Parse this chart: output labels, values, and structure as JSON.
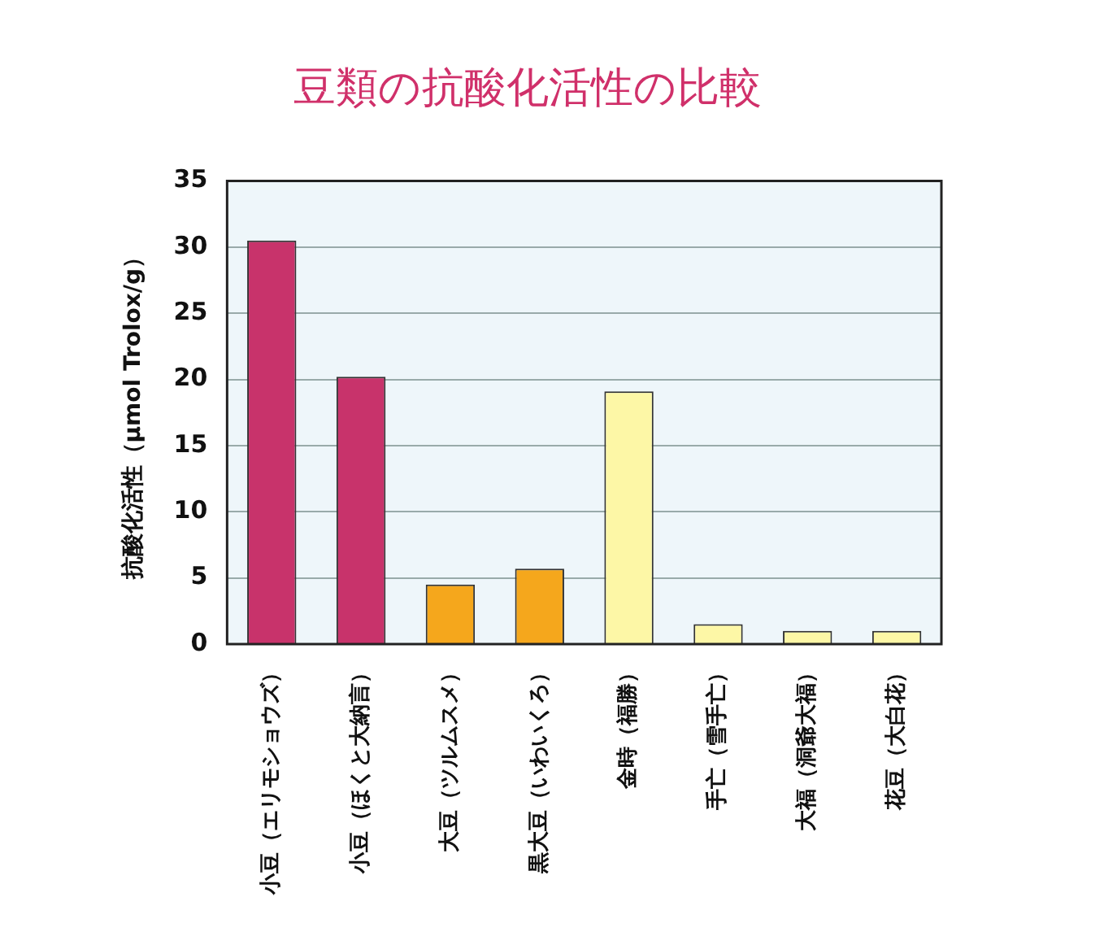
{
  "chart_data": {
    "type": "bar",
    "title": "豆類の抗酸化活性の比較",
    "ylabel": "抗酸化活性（μmol Trolox/g）",
    "categories": [
      "小豆（エリモショウズ）",
      "小豆（ほくと大納言）",
      "大豆（ツルムスメ）",
      "黒大豆（いわいくろ）",
      "金時（福勝）",
      "手亡（雪手亡）",
      "大福（洞爺大福）",
      "花豆（大白花）"
    ],
    "values": [
      30.5,
      20.2,
      4.5,
      5.7,
      19.1,
      1.5,
      1.0,
      1.0
    ],
    "colors": [
      "#c8336b",
      "#c8336b",
      "#f5a71c",
      "#f5a71c",
      "#fdf7a6",
      "#fdf7a6",
      "#fdf7a6",
      "#fdf7a6"
    ],
    "ylim": [
      0,
      35
    ],
    "yticks": [
      0,
      5,
      10,
      15,
      20,
      25,
      30,
      35
    ],
    "grid": "y",
    "legend": false
  }
}
